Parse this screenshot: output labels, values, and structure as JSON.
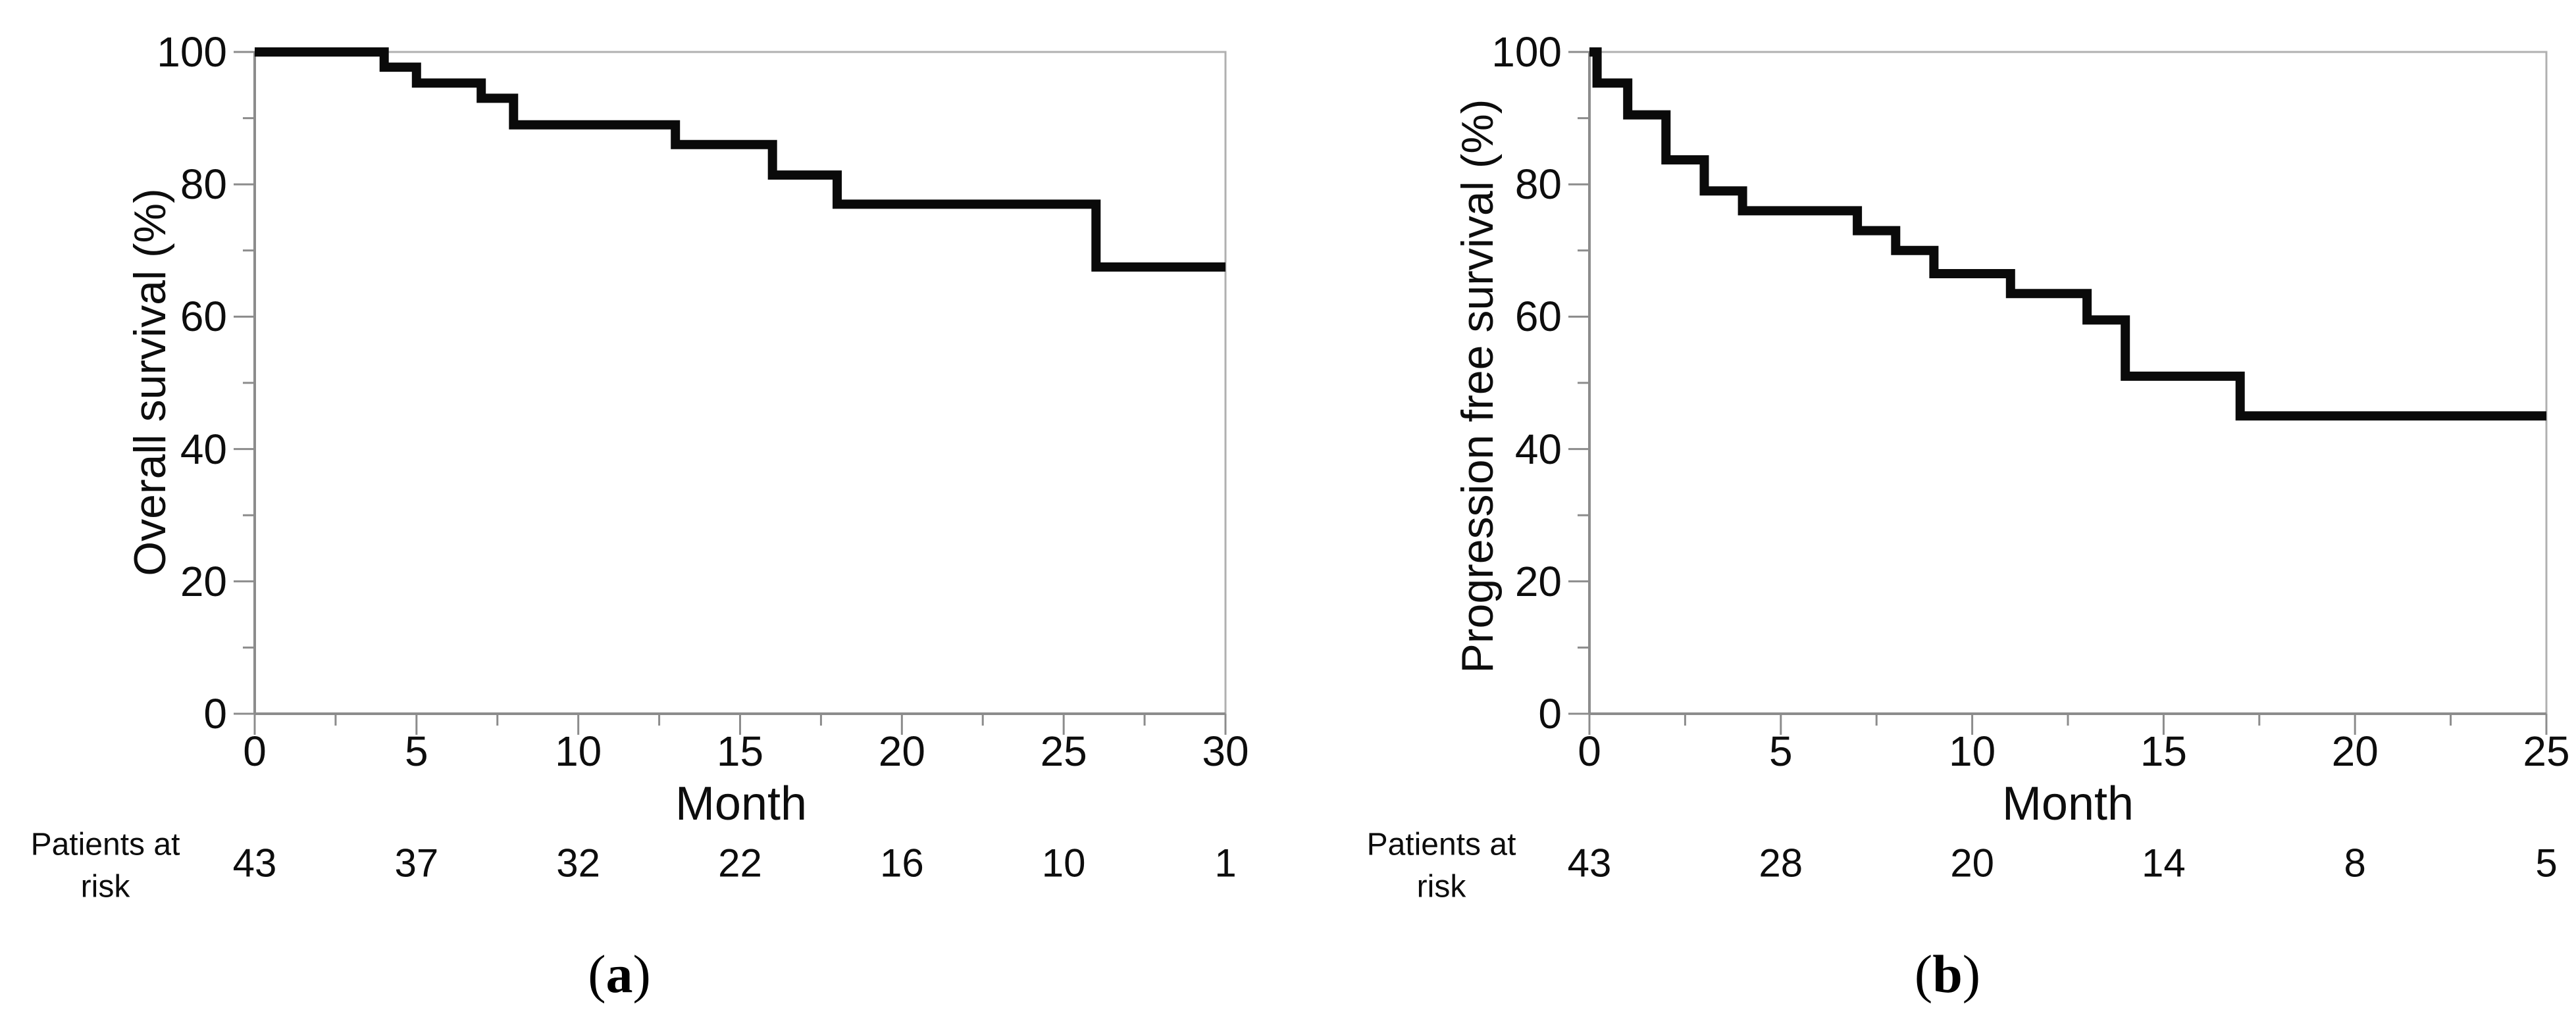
{
  "figure": {
    "captions": [
      {
        "open": "(",
        "letter": "a",
        "close": ")"
      },
      {
        "open": "(",
        "letter": "b",
        "close": ")"
      }
    ]
  },
  "styles": {
    "curve_color": "#0a0a0a",
    "border_color": "#b0b0b0",
    "axis_color": "#8c8c8c",
    "text_color": "#0d0d0d",
    "background": "#ffffff"
  },
  "chart_data": [
    {
      "type": "line",
      "subtype": "kaplan-meier-step",
      "title": "",
      "xlabel": "Month",
      "ylabel": "Overall survival (%)",
      "xlim": [
        0,
        30
      ],
      "ylim": [
        0,
        100
      ],
      "xticks": [
        0,
        5,
        10,
        15,
        20,
        25,
        30
      ],
      "yticks": [
        0,
        20,
        40,
        60,
        80,
        100
      ],
      "x_minor_step": 2.5,
      "y_minor_step": 10,
      "grid": false,
      "legend": "none",
      "points": [
        [
          0,
          100
        ],
        [
          4,
          100
        ],
        [
          4,
          97.7
        ],
        [
          5,
          97.7
        ],
        [
          5,
          95.3
        ],
        [
          7,
          95.3
        ],
        [
          7,
          93
        ],
        [
          8,
          93
        ],
        [
          8,
          89
        ],
        [
          13,
          89
        ],
        [
          13,
          86
        ],
        [
          16,
          86
        ],
        [
          16,
          81.4
        ],
        [
          18,
          81.4
        ],
        [
          18,
          77
        ],
        [
          26,
          77
        ],
        [
          26,
          67.5
        ],
        [
          30,
          67.5
        ]
      ],
      "risk_header": [
        "Patients at",
        "risk"
      ],
      "risk_times": [
        0,
        5,
        10,
        15,
        20,
        25,
        30
      ],
      "risk_counts": [
        43,
        37,
        32,
        22,
        16,
        10,
        1
      ]
    },
    {
      "type": "line",
      "subtype": "kaplan-meier-step",
      "title": "",
      "xlabel": "Month",
      "ylabel": "Progression free survival (%)",
      "xlim": [
        0,
        25
      ],
      "ylim": [
        0,
        100
      ],
      "xticks": [
        0,
        5,
        10,
        15,
        20,
        25
      ],
      "yticks": [
        0,
        20,
        40,
        60,
        80,
        100
      ],
      "x_minor_step": 2.5,
      "y_minor_step": 10,
      "grid": false,
      "legend": "none",
      "points": [
        [
          0,
          100
        ],
        [
          0.2,
          100
        ],
        [
          0.2,
          95.3
        ],
        [
          1,
          95.3
        ],
        [
          1,
          90.5
        ],
        [
          2,
          90.5
        ],
        [
          2,
          83.7
        ],
        [
          3,
          83.7
        ],
        [
          3,
          79
        ],
        [
          4,
          79
        ],
        [
          4,
          76
        ],
        [
          7,
          76
        ],
        [
          7,
          73
        ],
        [
          8,
          73
        ],
        [
          8,
          70
        ],
        [
          9,
          70
        ],
        [
          9,
          66.5
        ],
        [
          11,
          66.5
        ],
        [
          11,
          63.5
        ],
        [
          13,
          63.5
        ],
        [
          13,
          59.5
        ],
        [
          14,
          59.5
        ],
        [
          14,
          51
        ],
        [
          17,
          51
        ],
        [
          17,
          45
        ],
        [
          25,
          45
        ]
      ],
      "risk_header": [
        "Patients at",
        "risk"
      ],
      "risk_times": [
        0,
        5,
        10,
        15,
        20,
        25
      ],
      "risk_counts": [
        43,
        28,
        20,
        14,
        8,
        5
      ]
    }
  ]
}
